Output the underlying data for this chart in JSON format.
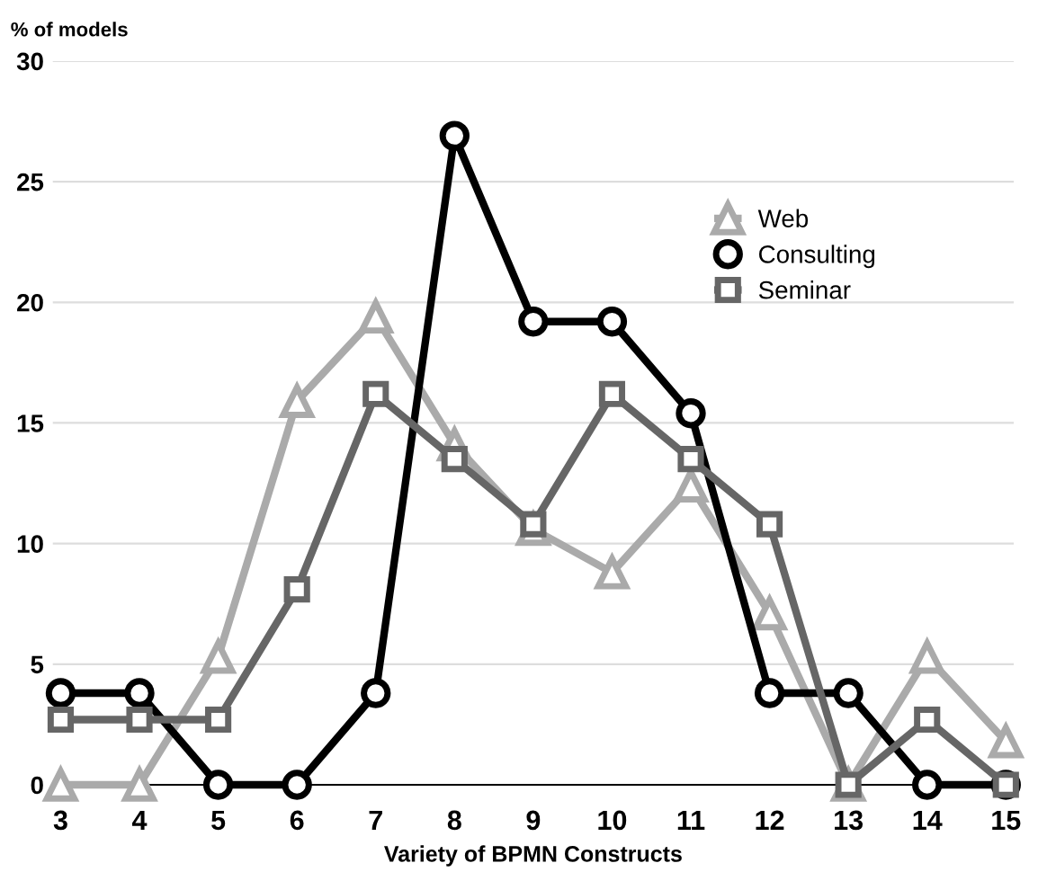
{
  "chart_data": {
    "type": "line",
    "xlabel": "Variety of BPMN Constructs",
    "ylabel": "% of models",
    "categories": [
      "3",
      "4",
      "5",
      "6",
      "7",
      "8",
      "9",
      "10",
      "11",
      "12",
      "13",
      "14",
      "15"
    ],
    "series": [
      {
        "name": "Web",
        "color": "#aaaaaa",
        "marker": "triangle",
        "values": [
          0,
          0,
          5.3,
          15.9,
          19.4,
          14.1,
          10.6,
          8.8,
          12.4,
          7.1,
          0,
          5.3,
          1.8
        ]
      },
      {
        "name": "Consulting",
        "color": "#000000",
        "marker": "circle",
        "values": [
          3.8,
          3.8,
          0,
          0,
          3.8,
          26.9,
          19.2,
          19.2,
          15.4,
          3.8,
          3.8,
          0,
          0
        ]
      },
      {
        "name": "Seminar",
        "color": "#666666",
        "marker": "square",
        "values": [
          2.7,
          2.7,
          2.7,
          8.1,
          16.2,
          13.5,
          10.8,
          16.2,
          13.5,
          10.8,
          0,
          2.7,
          0
        ]
      }
    ],
    "ylim": [
      0,
      30
    ],
    "yticks": [
      0,
      5,
      10,
      15,
      20,
      25,
      30
    ],
    "grid": "y",
    "legend": "right",
    "line_style": "solid"
  }
}
